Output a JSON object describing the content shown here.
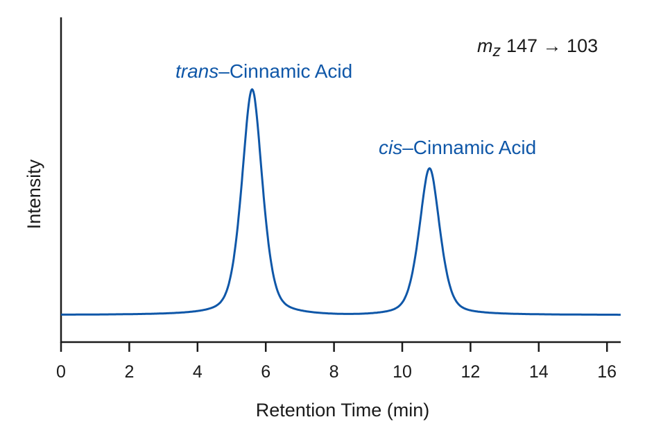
{
  "chart_data": {
    "type": "line",
    "title": "",
    "xlabel": "Retention Time (min)",
    "ylabel": "Intensity",
    "xlim": [
      0,
      16.4
    ],
    "xticks": [
      0,
      2,
      4,
      6,
      8,
      10,
      12,
      14,
      16
    ],
    "ylim": [
      0,
      1
    ],
    "yticks": [],
    "grid": false,
    "legend": null,
    "transition_annotation": {
      "prefix": "m",
      "subscript": "z",
      "text": "147 → 103"
    },
    "series": [
      {
        "name": "m/z 147 → 103",
        "color": "#0f57a8",
        "baseline": 0.0,
        "peaks": [
          {
            "label_italic": "trans",
            "label_rest": "–Cinnamic Acid",
            "retention_time": 5.6,
            "relative_height": 1.0
          },
          {
            "label_italic": "cis",
            "label_rest": "–Cinnamic Acid",
            "retention_time": 10.8,
            "relative_height": 0.65
          }
        ]
      }
    ]
  },
  "colors": {
    "trace": "#0f57a8",
    "label": "#0f57a8",
    "axis": "#1a1a1a"
  }
}
